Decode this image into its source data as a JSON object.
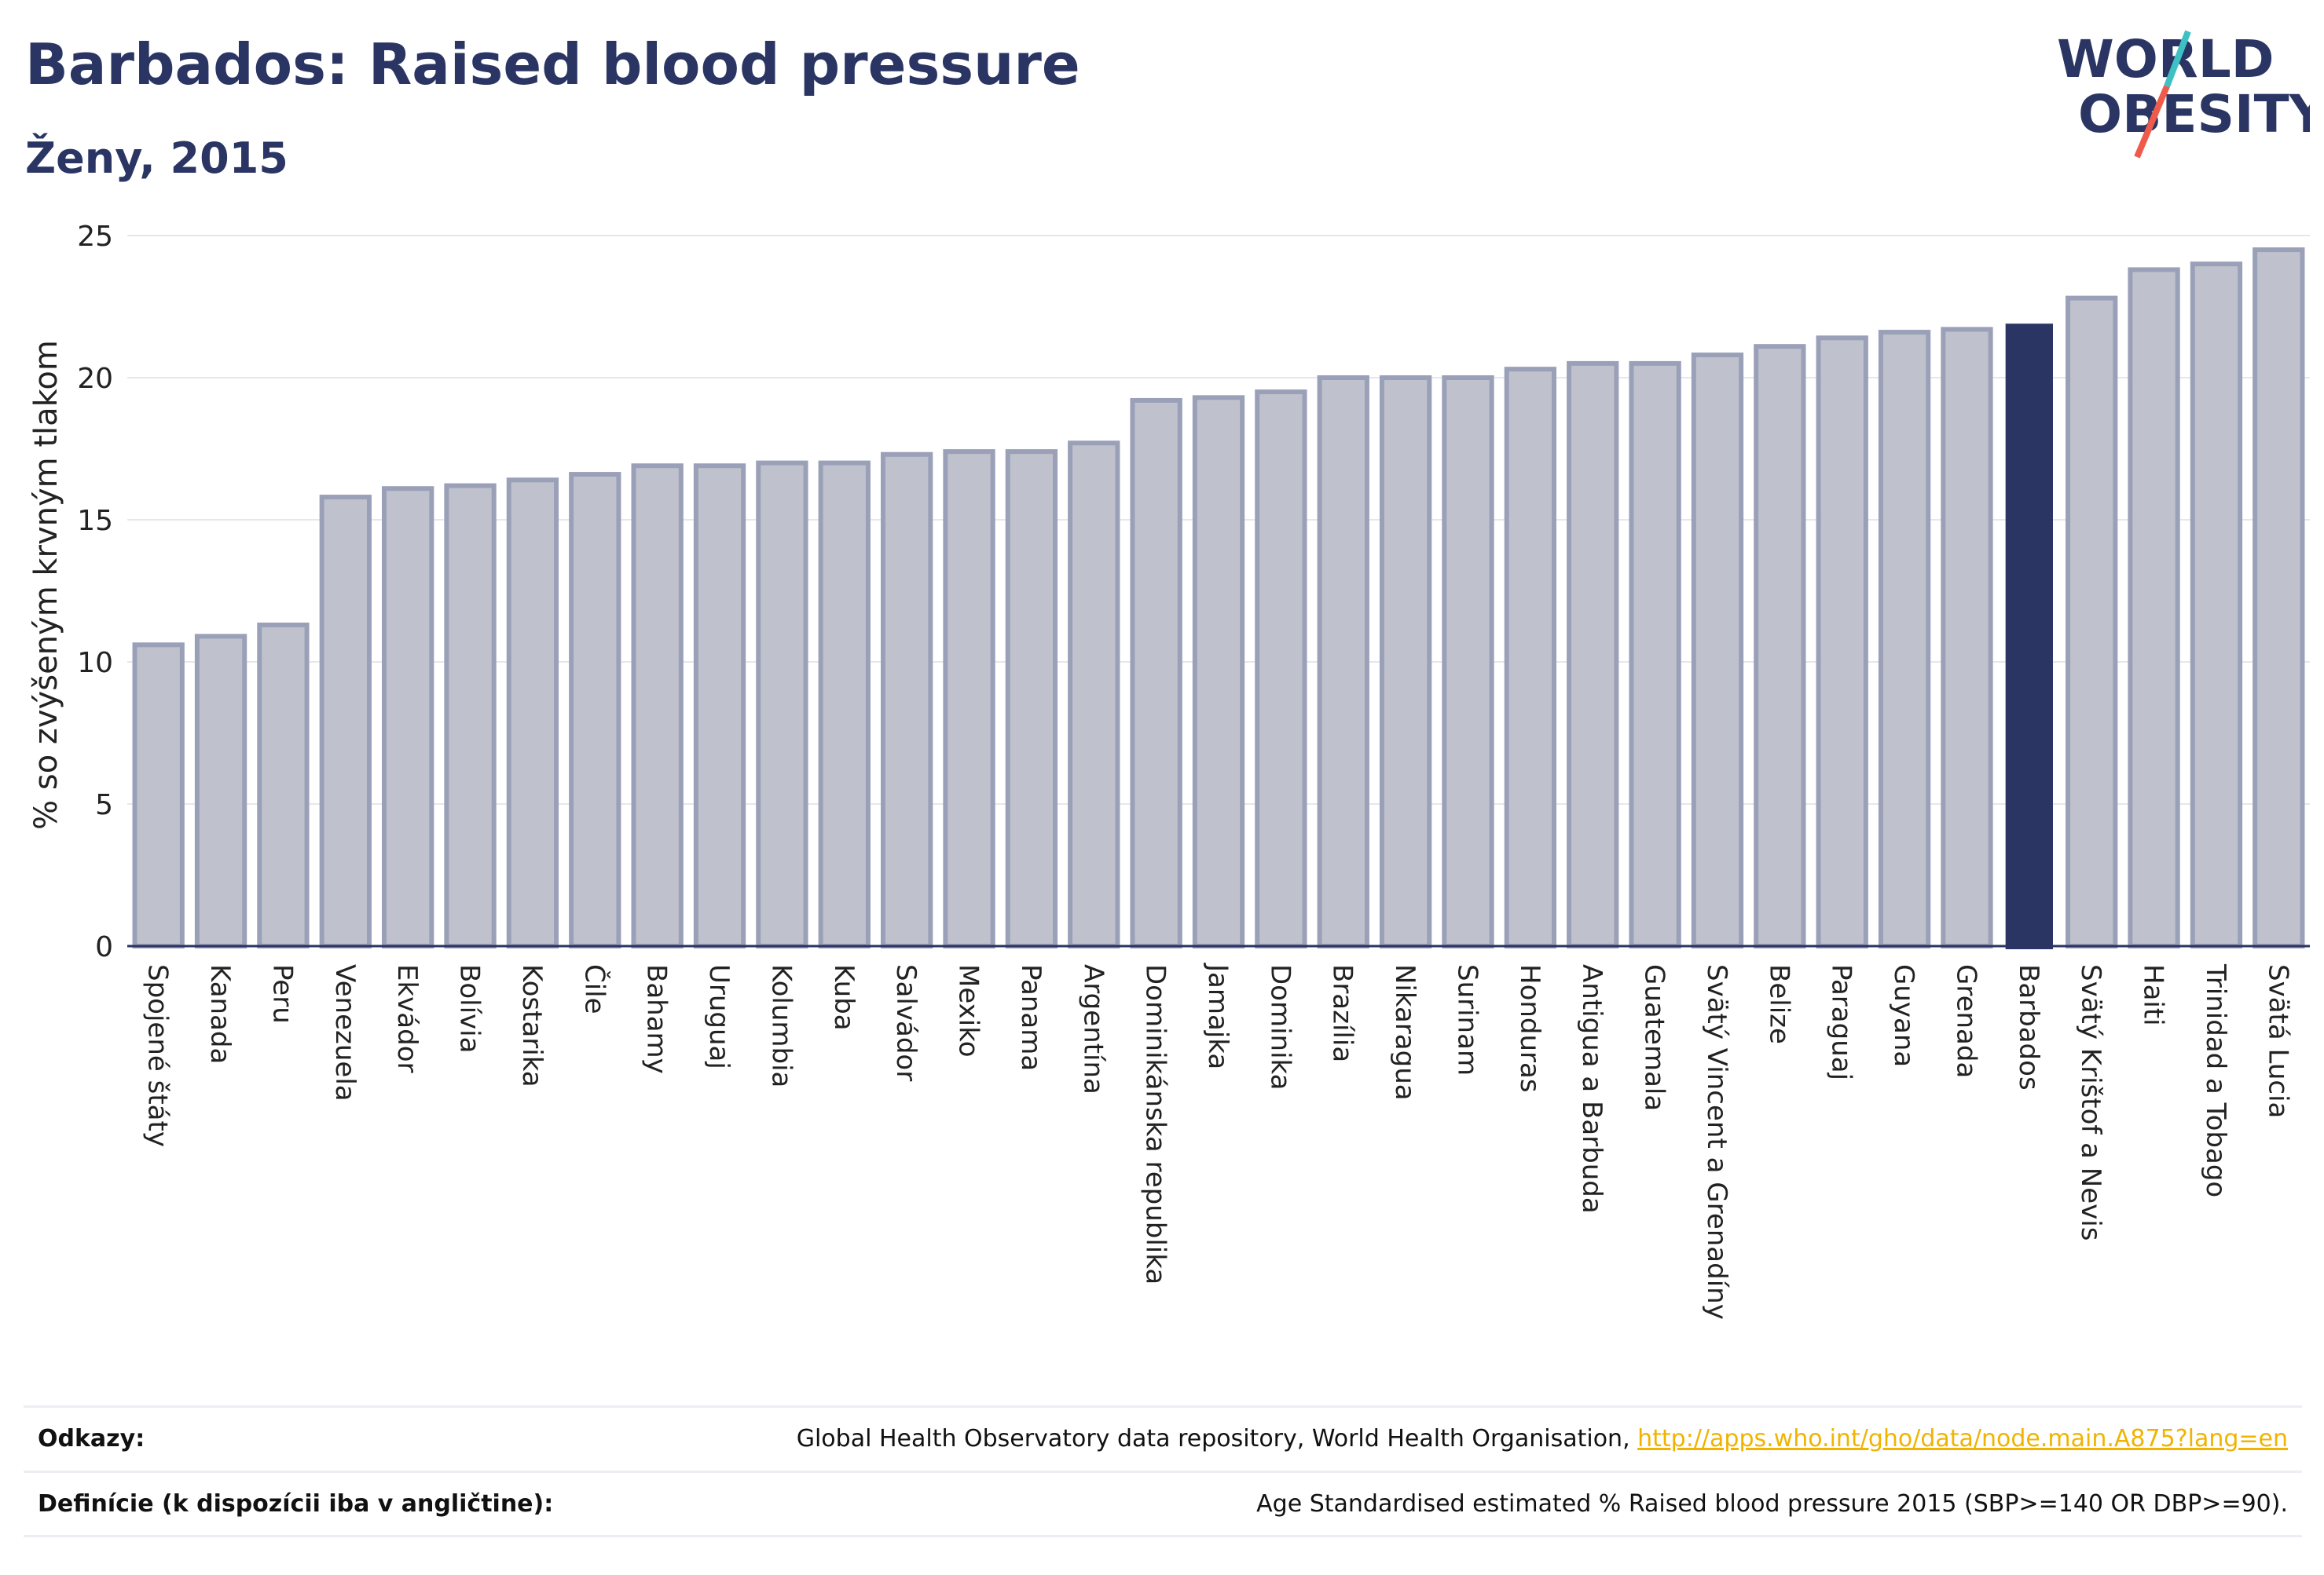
{
  "title": "Barbados: Raised blood pressure",
  "subtitle": "Ženy, 2015",
  "logo": {
    "line1": "WORLD",
    "line2": "OBESITY",
    "accent1": "#3ec1c3",
    "accent2": "#f05a4a",
    "color": "#2a3563"
  },
  "chart_data": {
    "type": "bar",
    "ylabel": "% so zvýšeným krvným tlakom",
    "xlabel": "",
    "ylim": [
      0,
      25
    ],
    "yticks": [
      0,
      5,
      10,
      15,
      20,
      25
    ],
    "grid": true,
    "highlight": "Barbados",
    "colors": {
      "bar": "#bfc2cd",
      "bar_edge": "#9aa0b8",
      "highlight": "#2a3563",
      "grid": "#e6e7ec"
    },
    "categories": [
      "Spojené štáty",
      "Kanada",
      "Peru",
      "Venezuela",
      "Ekvádor",
      "Bolívia",
      "Kostarika",
      "Čile",
      "Bahamy",
      "Uruguaj",
      "Kolumbia",
      "Kuba",
      "Salvádor",
      "Mexiko",
      "Panama",
      "Argentína",
      "Dominikánska republika",
      "Jamajka",
      "Dominika",
      "Brazília",
      "Nikaragua",
      "Surinam",
      "Honduras",
      "Antigua a Barbuda",
      "Guatemala",
      "Svätý Vincent a Grenadíny",
      "Belize",
      "Paraguaj",
      "Guyana",
      "Grenada",
      "Barbados",
      "Svätý Krištof a Nevis",
      "Haiti",
      "Trinidad a Tobago",
      "Svätá Lucia"
    ],
    "values": [
      10.6,
      10.9,
      11.3,
      15.8,
      16.1,
      16.2,
      16.4,
      16.6,
      16.9,
      16.9,
      17.0,
      17.0,
      17.3,
      17.4,
      17.4,
      17.7,
      19.2,
      19.3,
      19.5,
      20.0,
      20.0,
      20.0,
      20.3,
      20.5,
      20.5,
      20.8,
      21.1,
      21.4,
      21.6,
      21.7,
      21.9,
      22.8,
      23.8,
      24.0,
      24.5
    ]
  },
  "footer": {
    "references_label": "Odkazy:",
    "references_text": "Global Health Observatory data repository, World Health Organisation, ",
    "references_link": "http://apps.who.int/gho/data/node.main.A875?lang=en",
    "definitions_label": "Definície (k dispozícii iba v angličtine):",
    "definitions_text": "Age Standardised estimated % Raised blood pressure 2015 (SBP>=140 OR DBP>=90)."
  }
}
